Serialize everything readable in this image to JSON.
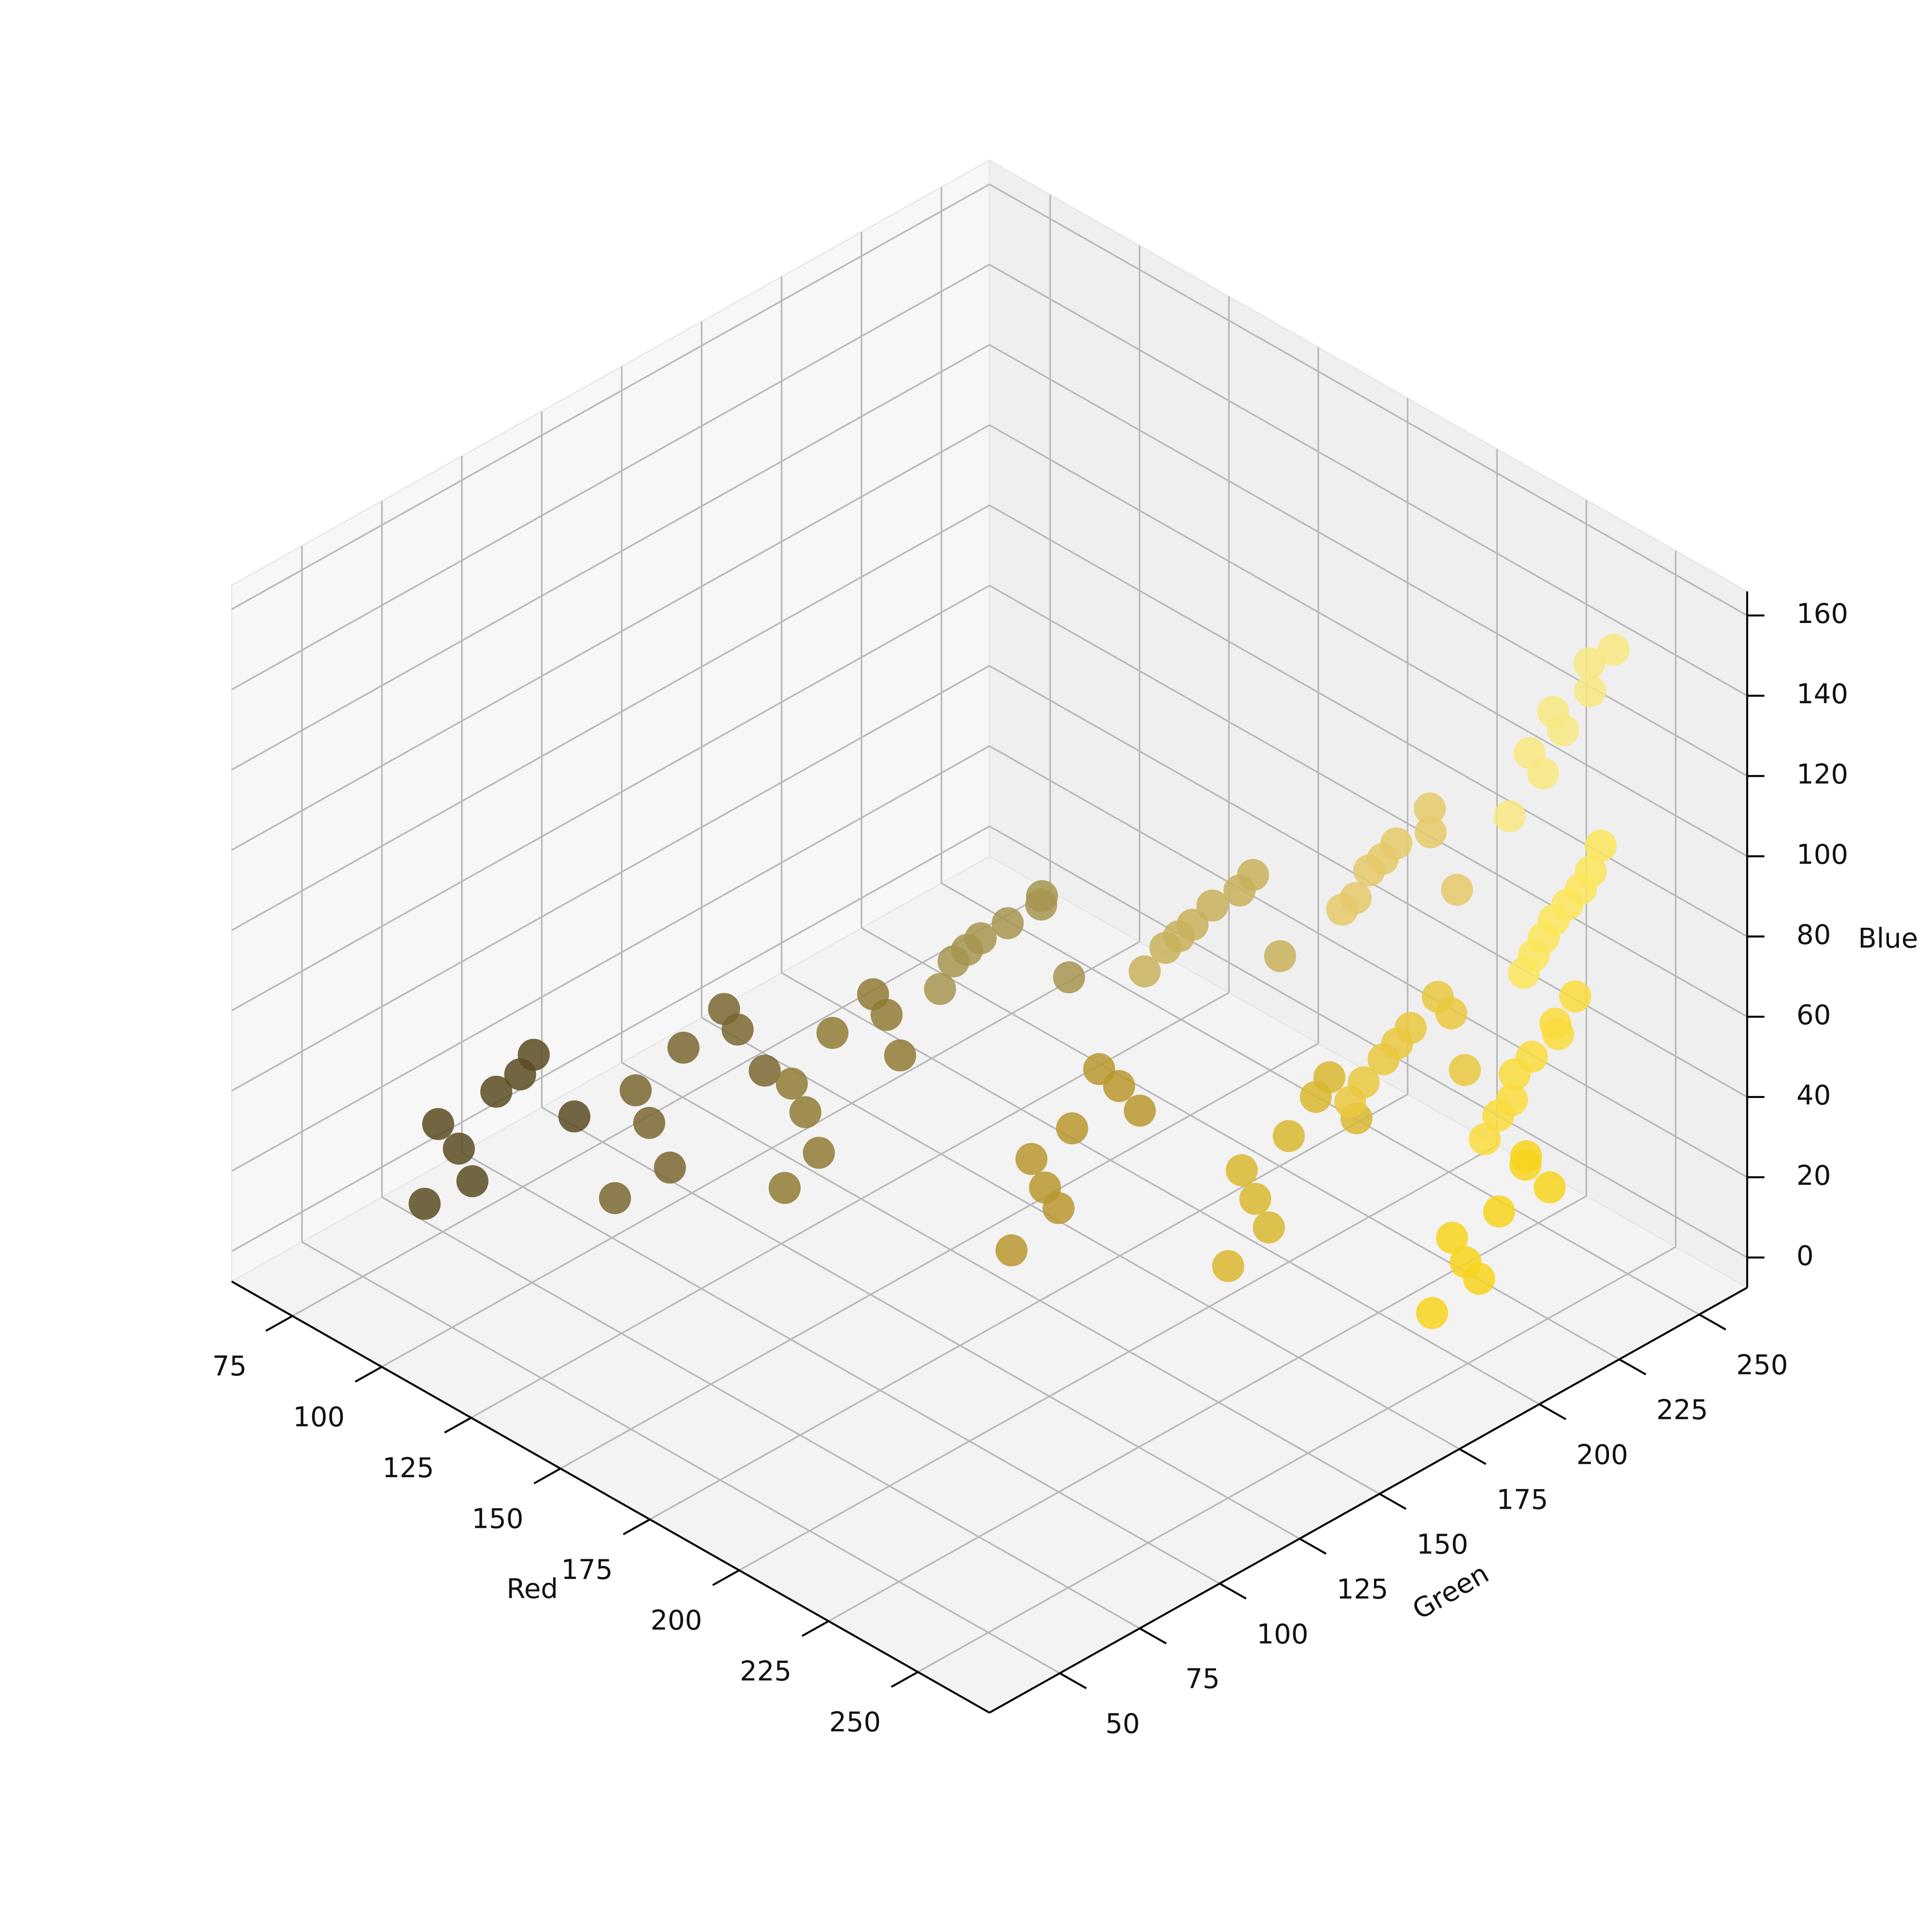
{
  "chart_data": {
    "type": "scatter3d",
    "xlabel": "Red",
    "ylabel": "Green",
    "zlabel": "Blue",
    "xlim": [
      58,
      270
    ],
    "xticks": [
      75,
      100,
      125,
      150,
      175,
      200,
      225,
      250
    ],
    "ylim": [
      28,
      265
    ],
    "yticks": [
      50,
      75,
      100,
      125,
      150,
      175,
      200,
      225,
      250
    ],
    "zlim": [
      -7.5,
      166
    ],
    "zticks": [
      0,
      20,
      40,
      60,
      80,
      100,
      120,
      140,
      160
    ],
    "grid": true,
    "series": [
      {
        "color": "#5a4b21",
        "x": [
          78,
          84,
          90,
          96,
          102,
          86,
          94,
          80
        ],
        "y": [
          66,
          70,
          75,
          80,
          86,
          72,
          78,
          68
        ],
        "z": [
          5,
          20,
          35,
          45,
          30,
          12,
          40,
          25
        ]
      },
      {
        "color": "#7a6630",
        "x": [
          108,
          114,
          120,
          126,
          132,
          118,
          128,
          112
        ],
        "y": [
          92,
          96,
          100,
          106,
          112,
          98,
          108,
          94
        ],
        "z": [
          10,
          30,
          50,
          60,
          45,
          20,
          55,
          38
        ]
      },
      {
        "color": "#8f7a35",
        "x": [
          134,
          138,
          142,
          148,
          152,
          140,
          150,
          136
        ],
        "y": [
          116,
          118,
          122,
          128,
          132,
          120,
          130,
          116
        ],
        "z": [
          15,
          35,
          55,
          65,
          50,
          25,
          60,
          42
        ]
      },
      {
        "color": "#a6954f",
        "x": [
          156,
          160,
          166,
          172,
          176,
          162,
          170,
          158
        ],
        "y": [
          140,
          144,
          150,
          154,
          158,
          146,
          156,
          142
        ],
        "z": [
          65,
          75,
          82,
          90,
          70,
          78,
          86,
          72
        ]
      },
      {
        "color": "#b8972e",
        "x": [
          176,
          180,
          184,
          188,
          194,
          182,
          190,
          178
        ],
        "y": [
          140,
          146,
          150,
          154,
          160,
          148,
          158,
          144
        ],
        "z": [
          10,
          25,
          40,
          55,
          45,
          20,
          50,
          32
        ]
      },
      {
        "color": "#c8b05a",
        "x": [
          190,
          196,
          200,
          206,
          210,
          198,
          204,
          194
        ],
        "y": [
          166,
          170,
          176,
          182,
          186,
          172,
          180,
          168
        ],
        "z": [
          75,
          85,
          92,
          100,
          80,
          88,
          96,
          82
        ]
      },
      {
        "color": "#d9b62f",
        "x": [
          208,
          212,
          216,
          222,
          226,
          214,
          220,
          210
        ],
        "y": [
          172,
          176,
          182,
          188,
          192,
          178,
          186,
          174
        ],
        "z": [
          8,
          25,
          40,
          55,
          45,
          18,
          50,
          32
        ]
      },
      {
        "color": "#e6c96a",
        "x": [
          222,
          226,
          230,
          234,
          238,
          228,
          236,
          224
        ],
        "y": [
          192,
          196,
          200,
          206,
          210,
          198,
          204,
          194
        ],
        "z": [
          95,
          105,
          112,
          120,
          100,
          108,
          116,
          98
        ]
      },
      {
        "color": "#eac840",
        "x": [
          226,
          230,
          234,
          238,
          242,
          232,
          240,
          228
        ],
        "y": [
          190,
          196,
          200,
          204,
          208,
          198,
          206,
          192
        ],
        "z": [
          50,
          60,
          68,
          76,
          58,
          64,
          72,
          55
        ]
      },
      {
        "color": "#f7d31c",
        "x": [
          240,
          244,
          248,
          252,
          255,
          246,
          250,
          242
        ],
        "y": [
          200,
          206,
          212,
          216,
          220,
          208,
          218,
          204
        ],
        "z": [
          0,
          12,
          24,
          38,
          30,
          8,
          34,
          18
        ]
      },
      {
        "color": "#f8e780",
        "x": [
          242,
          246,
          248,
          252,
          255,
          244,
          250,
          247
        ],
        "y": [
          222,
          228,
          232,
          236,
          240,
          226,
          238,
          230
        ],
        "z": [
          115,
          125,
          135,
          145,
          155,
          130,
          150,
          140
        ]
      },
      {
        "color": "#fbe55a",
        "x": [
          246,
          248,
          251,
          254,
          255,
          249,
          253,
          247
        ],
        "y": [
          222,
          226,
          230,
          234,
          236,
          228,
          232,
          224
        ],
        "z": [
          78,
          86,
          94,
          102,
          108,
          90,
          98,
          82
        ]
      },
      {
        "color": "#fadc3c",
        "x": [
          244,
          248,
          250,
          253,
          255,
          247,
          252,
          246
        ],
        "y": [
          212,
          216,
          220,
          224,
          228,
          218,
          226,
          214
        ],
        "z": [
          40,
          50,
          60,
          68,
          74,
          55,
          64,
          46
        ]
      }
    ]
  }
}
